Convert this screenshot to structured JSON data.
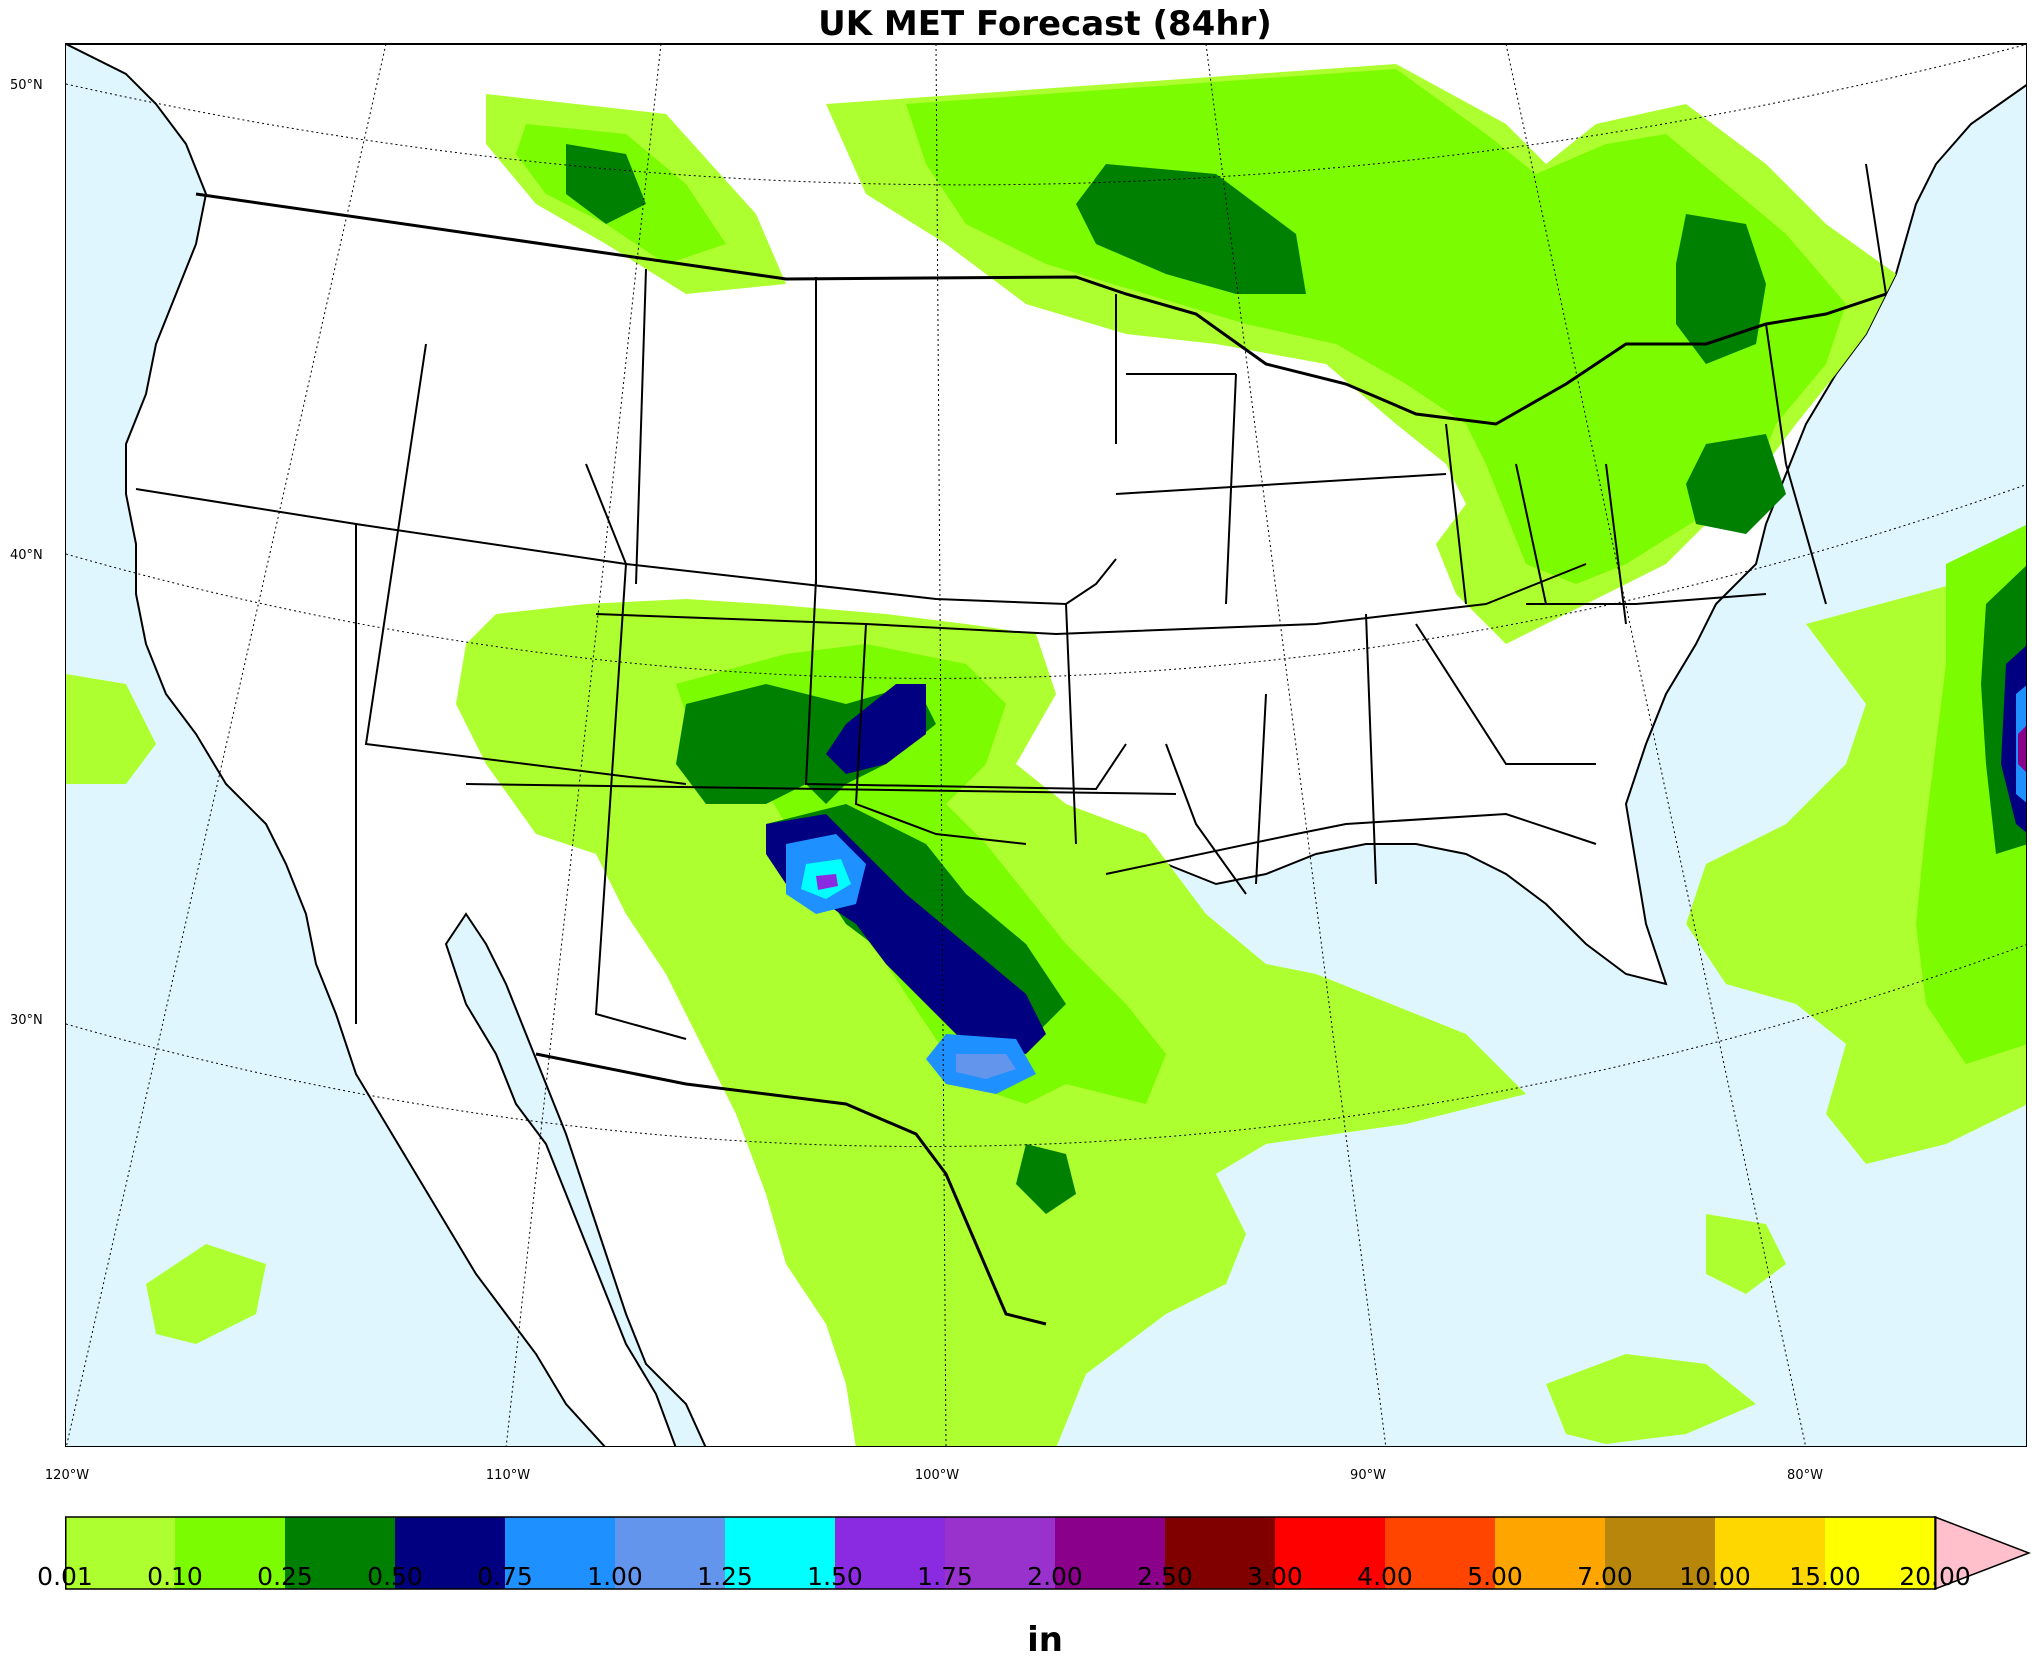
{
  "title": "UK MET Forecast (84hr)",
  "units": "in",
  "latitudes": [
    "50°N",
    "40°N",
    "30°N"
  ],
  "longitudes": [
    "120°W",
    "110°W",
    "100°W",
    "90°W",
    "80°W"
  ],
  "colorbar": {
    "ticks": [
      "0.01",
      "0.10",
      "0.25",
      "0.50",
      "0.75",
      "1.00",
      "1.25",
      "1.50",
      "1.75",
      "2.00",
      "2.50",
      "3.00",
      "4.00",
      "5.00",
      "7.00",
      "10.00",
      "15.00",
      "20.00"
    ],
    "colors": [
      "#adff2f",
      "#7cfc00",
      "#008000",
      "#000080",
      "#1e90ff",
      "#6495ed",
      "#00ffff",
      "#8a2be2",
      "#9932cc",
      "#8b008b",
      "#800000",
      "#ff0000",
      "#ff4500",
      "#ffa500",
      "#b8860b",
      "#ffd700",
      "#ffff00"
    ],
    "extend_color": "#ffc0cb"
  },
  "colors": {
    "ocean": "#e0f6fe",
    "land": "#ffffff"
  }
}
